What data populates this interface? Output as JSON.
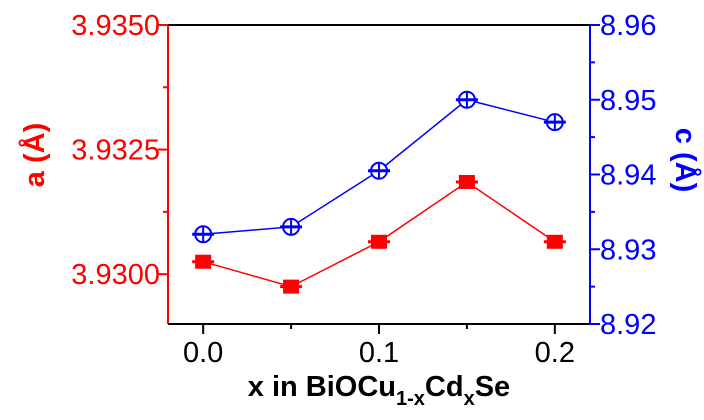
{
  "chart_data": {
    "type": "line",
    "xlabel": {
      "main": "x in BiOCu",
      "sub1": "1-x",
      "mid": "Cd",
      "sub2": "x",
      "end": "Se"
    },
    "x_ticks": [
      "0.0",
      "0.1",
      "0.2"
    ],
    "xlim": [
      -0.02,
      0.22
    ],
    "y_left": {
      "label": "a (Å)",
      "ticks": [
        "3.9300",
        "3.9325",
        "3.9350"
      ],
      "tick_values": [
        3.93,
        3.9325,
        3.935
      ],
      "ylim": [
        3.929,
        3.935
      ],
      "color": "#ff0000"
    },
    "y_right": {
      "label": "c (Å)",
      "ticks": [
        "8.92",
        "8.93",
        "8.94",
        "8.95",
        "8.96"
      ],
      "tick_values": [
        8.92,
        8.93,
        8.94,
        8.95,
        8.96
      ],
      "ylim": [
        8.92,
        8.96
      ],
      "color": "#0000ff"
    },
    "series": [
      {
        "axis": "left",
        "color": "#ff0000",
        "marker": "filled-square",
        "x": [
          0.0,
          0.05,
          0.1,
          0.15,
          0.2
        ],
        "y": [
          3.93025,
          3.92975,
          3.93065,
          3.93185,
          3.93065
        ]
      },
      {
        "axis": "right",
        "color": "#0000ff",
        "marker": "circle-plus",
        "x": [
          0.0,
          0.05,
          0.1,
          0.15,
          0.2
        ],
        "y": [
          8.932,
          8.933,
          8.9405,
          8.95,
          8.947
        ]
      }
    ]
  }
}
